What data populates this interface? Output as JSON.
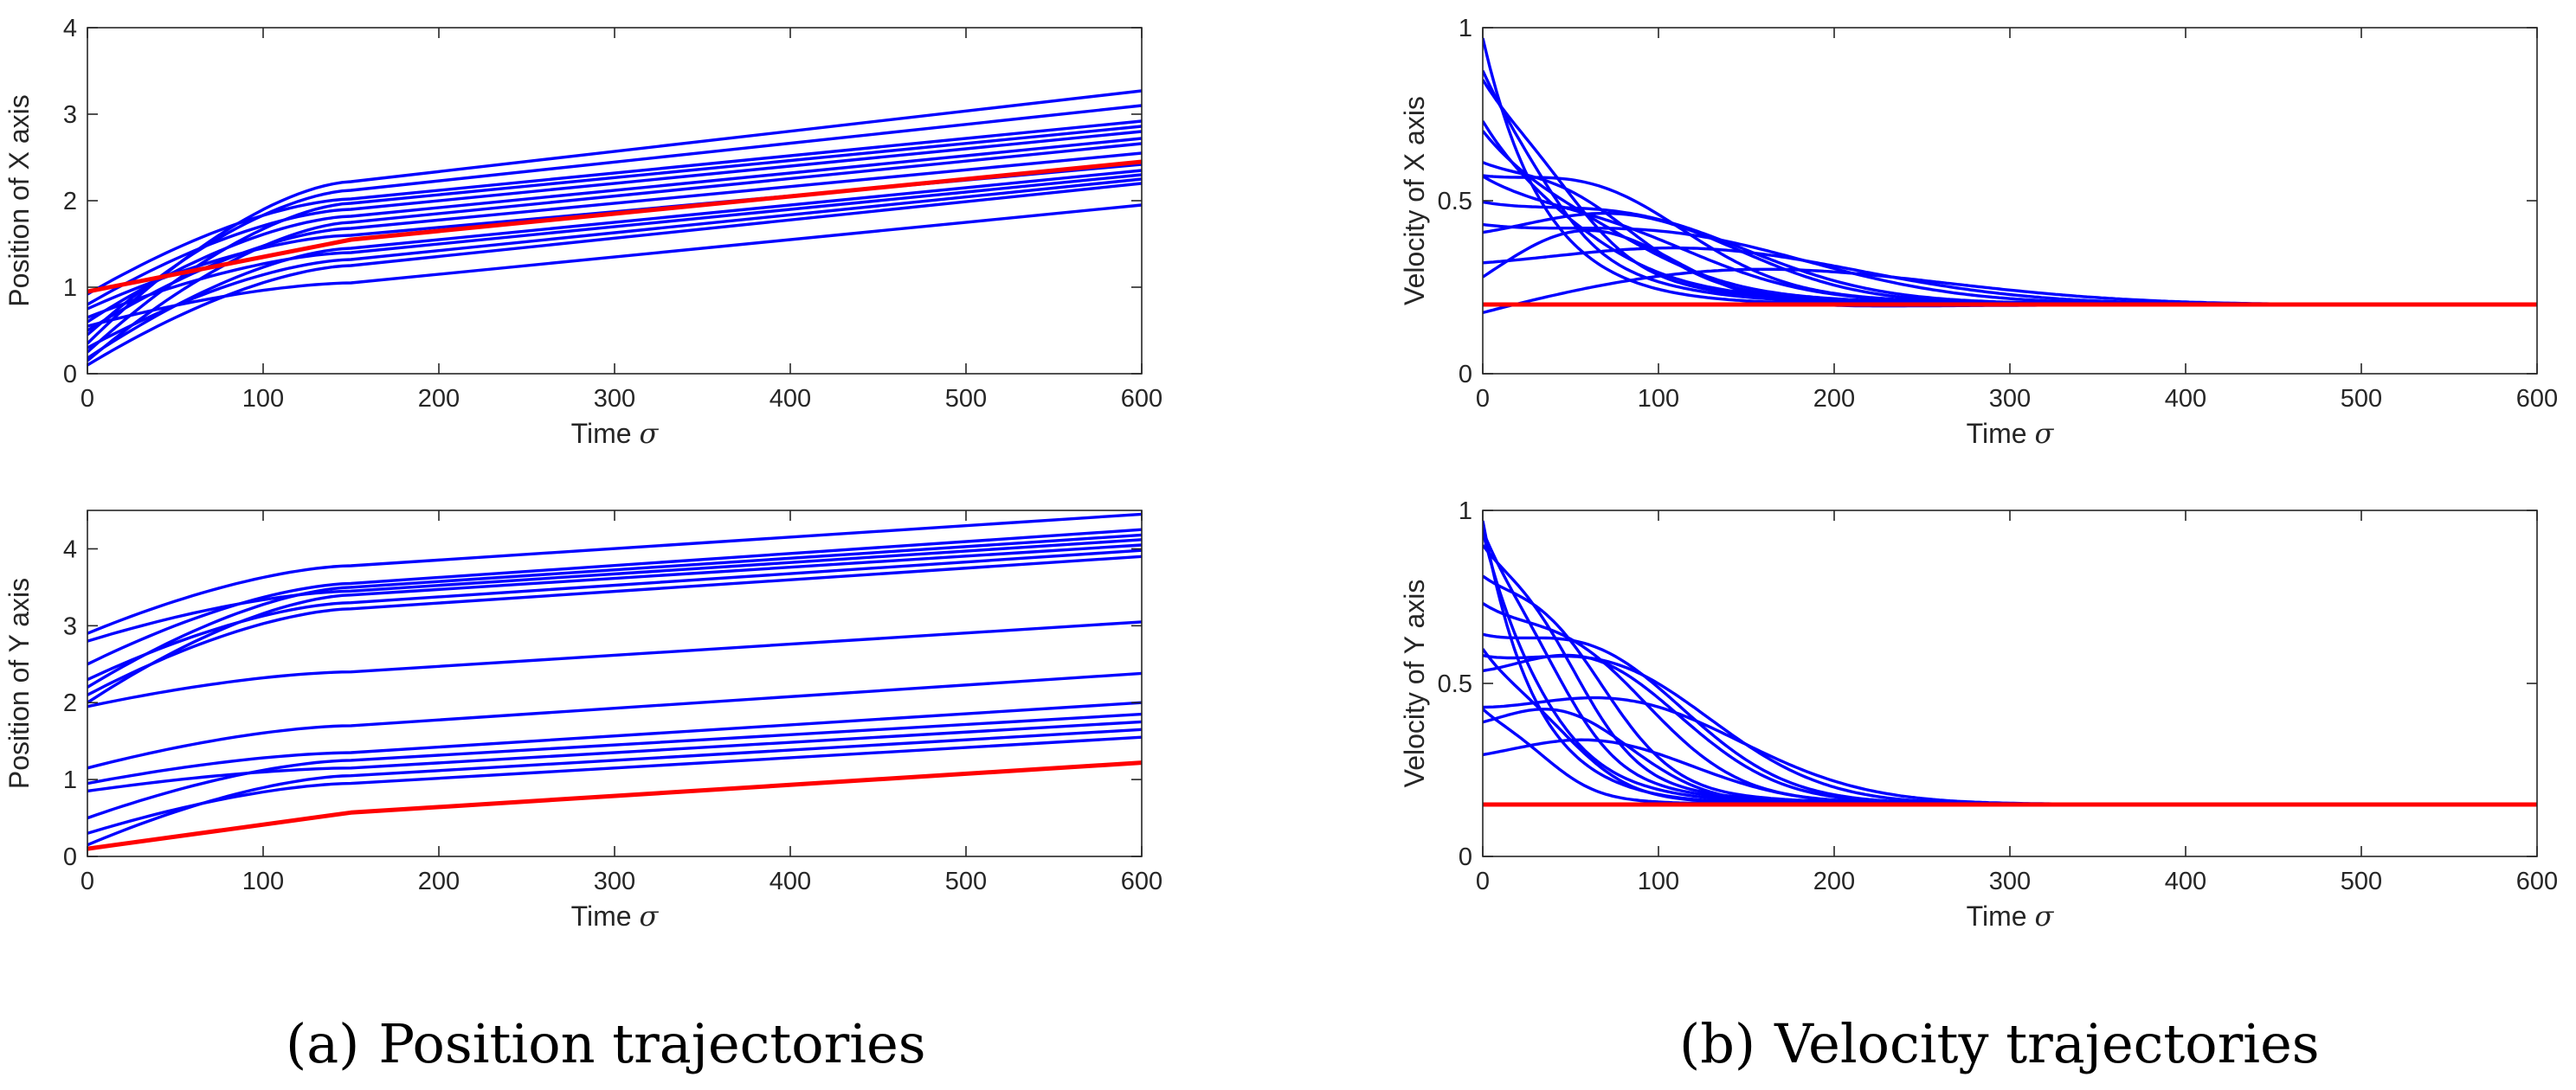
{
  "chart_data": [
    {
      "id": "pos-x",
      "type": "line",
      "xlabel": "Time",
      "xlabel_symbol": "σ",
      "ylabel": "Position of X axis",
      "xlim": [
        0,
        600
      ],
      "ylim": [
        0,
        4
      ],
      "xticks": [
        0,
        100,
        200,
        300,
        400,
        500,
        600
      ],
      "yticks": [
        0,
        1,
        2,
        3,
        4
      ],
      "grid": false,
      "model": "piecewise_linear",
      "knot_x": 150,
      "leader_color": "#ff0000",
      "follower_color": "#0000ff",
      "leader": {
        "name": "leader",
        "values": [
          0.95,
          1.55,
          2.45
        ]
      },
      "followers": [
        [
          0.35,
          2.22,
          3.27
        ],
        [
          0.45,
          2.12,
          3.1
        ],
        [
          0.92,
          2.02,
          2.92
        ],
        [
          0.25,
          1.97,
          2.86
        ],
        [
          0.8,
          1.9,
          2.8
        ],
        [
          0.6,
          1.82,
          2.72
        ],
        [
          0.15,
          1.75,
          2.66
        ],
        [
          0.5,
          1.68,
          2.55
        ],
        [
          0.75,
          1.6,
          2.42
        ],
        [
          0.18,
          1.45,
          2.35
        ],
        [
          0.65,
          1.4,
          2.3
        ],
        [
          0.3,
          1.32,
          2.25
        ],
        [
          0.1,
          1.25,
          2.2
        ],
        [
          0.55,
          1.05,
          1.95
        ]
      ]
    },
    {
      "id": "pos-y",
      "type": "line",
      "xlabel": "Time",
      "xlabel_symbol": "σ",
      "ylabel": "Position of Y axis",
      "xlim": [
        0,
        600
      ],
      "ylim": [
        0,
        4.5
      ],
      "xticks": [
        0,
        100,
        200,
        300,
        400,
        500,
        600
      ],
      "yticks": [
        0,
        1,
        2,
        3,
        4
      ],
      "grid": false,
      "model": "piecewise_linear",
      "knot_x": 150,
      "leader_color": "#ff0000",
      "follower_color": "#0000ff",
      "leader": {
        "name": "leader",
        "values": [
          0.1,
          0.57,
          1.22
        ]
      },
      "followers": [
        [
          2.9,
          3.78,
          4.45
        ],
        [
          2.5,
          3.55,
          4.25
        ],
        [
          2.2,
          3.5,
          4.18
        ],
        [
          2.8,
          3.45,
          4.12
        ],
        [
          2.0,
          3.4,
          4.05
        ],
        [
          2.3,
          3.3,
          3.98
        ],
        [
          2.1,
          3.22,
          3.9
        ],
        [
          1.95,
          2.4,
          3.05
        ],
        [
          1.15,
          1.7,
          2.38
        ],
        [
          0.95,
          1.35,
          2.0
        ],
        [
          0.5,
          1.25,
          1.85
        ],
        [
          0.85,
          1.15,
          1.75
        ],
        [
          0.15,
          1.05,
          1.65
        ],
        [
          0.3,
          0.95,
          1.55
        ]
      ]
    },
    {
      "id": "vel-x",
      "type": "line",
      "xlabel": "Time",
      "xlabel_symbol": "σ",
      "ylabel": "Velocity of X axis",
      "xlim": [
        0,
        600
      ],
      "ylim": [
        0,
        1
      ],
      "xticks": [
        0,
        100,
        200,
        300,
        400,
        500,
        600
      ],
      "yticks": [
        0,
        0.5,
        1
      ],
      "grid": false,
      "model": "damped_bump",
      "steady_value": 0.2,
      "leader_color": "#ff0000",
      "follower_color": "#0000ff",
      "leader": {
        "name": "leader",
        "value": 0.2
      },
      "followers": [
        {
          "v0": 0.97,
          "bump": 0,
          "peak_t": 50,
          "decay": 35
        },
        {
          "v0": 0.8,
          "bump": 0.1,
          "peak_t": 20,
          "decay": 45
        },
        {
          "v0": 0.75,
          "bump": 0.15,
          "peak_t": 30,
          "decay": 50
        },
        {
          "v0": 0.7,
          "bump": 0.05,
          "peak_t": 40,
          "decay": 55
        },
        {
          "v0": 0.65,
          "bump": 0.1,
          "peak_t": 60,
          "decay": 60
        },
        {
          "v0": 0.5,
          "bump": 0.2,
          "peak_t": 50,
          "decay": 65
        },
        {
          "v0": 0.5,
          "bump": 0.15,
          "peak_t": 80,
          "decay": 70
        },
        {
          "v0": 0.45,
          "bump": 0.25,
          "peak_t": 70,
          "decay": 80
        },
        {
          "v0": 0.4,
          "bump": 0.22,
          "peak_t": 100,
          "decay": 80
        },
        {
          "v0": 0.35,
          "bump": 0.2,
          "peak_t": 130,
          "decay": 85
        },
        {
          "v0": 0.3,
          "bump": 0.24,
          "peak_t": 90,
          "decay": 90
        },
        {
          "v0": 0.25,
          "bump": 0.18,
          "peak_t": 150,
          "decay": 95
        },
        {
          "v0": 0.15,
          "bump": 0.25,
          "peak_t": 60,
          "decay": 100
        },
        {
          "v0": 0.12,
          "bump": 0.15,
          "peak_t": 180,
          "decay": 110
        }
      ]
    },
    {
      "id": "vel-y",
      "type": "line",
      "xlabel": "Time",
      "xlabel_symbol": "σ",
      "ylabel": "Velocity of Y axis",
      "xlim": [
        0,
        600
      ],
      "ylim": [
        0,
        1
      ],
      "xticks": [
        0,
        100,
        200,
        300,
        400,
        500,
        600
      ],
      "yticks": [
        0,
        0.5,
        1
      ],
      "grid": false,
      "model": "damped_bump",
      "steady_value": 0.15,
      "leader_color": "#ff0000",
      "follower_color": "#0000ff",
      "leader": {
        "name": "leader",
        "value": 0.15
      },
      "followers": [
        {
          "v0": 0.97,
          "bump": 0,
          "peak_t": 40,
          "decay": 30
        },
        {
          "v0": 0.9,
          "bump": 0.05,
          "peak_t": 20,
          "decay": 35
        },
        {
          "v0": 0.8,
          "bump": 0.2,
          "peak_t": 25,
          "decay": 40
        },
        {
          "v0": 0.7,
          "bump": 0.3,
          "peak_t": 30,
          "decay": 45
        },
        {
          "v0": 0.6,
          "bump": 0.35,
          "peak_t": 40,
          "decay": 50
        },
        {
          "v0": 0.55,
          "bump": 0.35,
          "peak_t": 60,
          "decay": 55
        },
        {
          "v0": 0.45,
          "bump": 0.4,
          "peak_t": 75,
          "decay": 60
        },
        {
          "v0": 0.4,
          "bump": 0.4,
          "peak_t": 90,
          "decay": 60
        },
        {
          "v0": 0.35,
          "bump": 0.38,
          "peak_t": 70,
          "decay": 65
        },
        {
          "v0": 0.3,
          "bump": 0.3,
          "peak_t": 100,
          "decay": 70
        },
        {
          "v0": 0.25,
          "bump": 0.25,
          "peak_t": 50,
          "decay": 50
        },
        {
          "v0": 0.2,
          "bump": 0.2,
          "peak_t": 80,
          "decay": 55
        },
        {
          "v0": 0.5,
          "bump": 0.15,
          "peak_t": 30,
          "decay": 35
        },
        {
          "v0": 0.35,
          "bump": 0.1,
          "peak_t": 20,
          "decay": 30
        }
      ]
    }
  ],
  "captions": {
    "a": {
      "tag": "(a)",
      "text": "Position trajectories"
    },
    "b": {
      "tag": "(b)",
      "text": "Velocity trajectories"
    }
  }
}
